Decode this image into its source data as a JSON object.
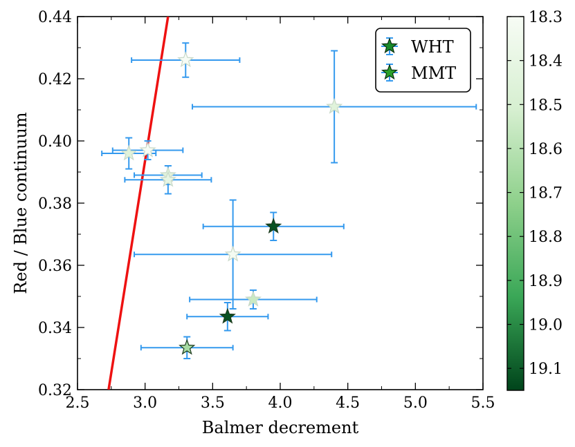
{
  "chart_data": {
    "type": "scatter",
    "xlabel": "Balmer decrement",
    "ylabel": "Red / Blue continuum",
    "xlim": [
      2.5,
      5.5
    ],
    "ylim": [
      0.32,
      0.44
    ],
    "xticks": [
      "2.5",
      "3.0",
      "3.5",
      "4.0",
      "4.5",
      "5.0",
      "5.5"
    ],
    "yticks": [
      "0.32",
      "0.34",
      "0.36",
      "0.38",
      "0.40",
      "0.42",
      "0.44"
    ],
    "grid": false,
    "legend_position": "top-right",
    "errorbar_color": "#3399ee",
    "fit_line": {
      "color": "#ee1111",
      "x": [
        2.73,
        3.17
      ],
      "y": [
        0.32,
        0.44
      ]
    },
    "colorbar": {
      "range": [
        18.3,
        19.15
      ],
      "ticks": [
        "18.3",
        "18.4",
        "18.5",
        "18.6",
        "18.7",
        "18.8",
        "18.9",
        "19.0",
        "19.1"
      ],
      "tick_values": [
        18.3,
        18.4,
        18.5,
        18.6,
        18.7,
        18.8,
        18.9,
        19.0,
        19.1
      ],
      "colormap": "Greens",
      "reversed": true
    },
    "legend": [
      {
        "label": "WHT",
        "color": "#1a8a2a"
      },
      {
        "label": "MMT",
        "color": "#2aa02a"
      }
    ],
    "series": [
      {
        "name": "WHT",
        "marker": "star",
        "points": [
          {
            "x": 3.3,
            "y": 0.426,
            "xerr": 0.4,
            "yerr": 0.0055,
            "c": 18.3
          },
          {
            "x": 4.4,
            "y": 0.411,
            "xerr": 1.05,
            "yerr": 0.018,
            "c": 18.45
          },
          {
            "x": 3.02,
            "y": 0.397,
            "xerr": 0.26,
            "yerr": 0.003,
            "c": 18.3
          },
          {
            "x": 3.17,
            "y": 0.389,
            "xerr": 0.25,
            "yerr": 0.003,
            "c": 18.45
          },
          {
            "x": 3.65,
            "y": 0.3635,
            "xerr": 0.73,
            "yerr": 0.0175,
            "c": 18.32
          },
          {
            "x": 3.95,
            "y": 0.3725,
            "xerr": 0.52,
            "yerr": 0.0045,
            "c": 19.12
          },
          {
            "x": 3.8,
            "y": 0.349,
            "xerr": 0.47,
            "yerr": 0.003,
            "c": 18.55
          }
        ]
      },
      {
        "name": "MMT",
        "marker": "star",
        "points": [
          {
            "x": 2.88,
            "y": 0.396,
            "xerr": 0.2,
            "yerr": 0.005,
            "c": 18.45
          },
          {
            "x": 3.17,
            "y": 0.3875,
            "xerr": 0.32,
            "yerr": 0.0045,
            "c": 18.4
          },
          {
            "x": 3.61,
            "y": 0.3435,
            "xerr": 0.3,
            "yerr": 0.0045,
            "c": 19.12
          },
          {
            "x": 3.31,
            "y": 0.3335,
            "xerr": 0.34,
            "yerr": 0.0035,
            "c": 18.65
          }
        ]
      }
    ]
  }
}
